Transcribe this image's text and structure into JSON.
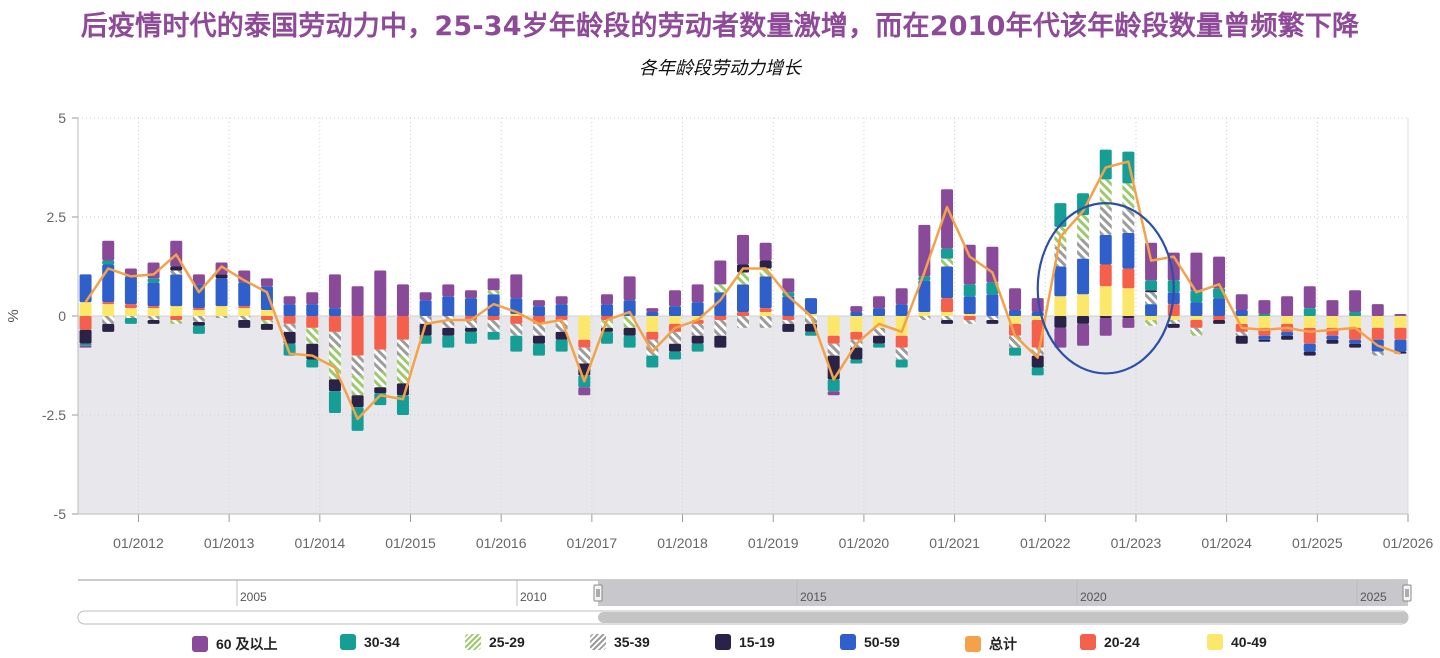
{
  "title": "后疫情时代的泰国劳动力中，25-34岁年龄段的劳动者数量激增，而在2010年代该年龄段数量曾频繁下降",
  "subtitle": "各年龄段劳动力增长",
  "colors": {
    "a60": "#8a4a9a",
    "a3034": "#159e96",
    "a2529": "#9cc96b",
    "a3539": "#9c9c9c",
    "a1519": "#2b2347",
    "a5059": "#2e5fcb",
    "total": "#f4a24a",
    "a2024": "#f4604c",
    "a4049": "#fbe86a",
    "highlight": "#2e4fa8"
  },
  "navigator": {
    "labels": [
      "2005",
      "2010",
      "2015",
      "2020",
      "2025"
    ]
  },
  "legend": [
    {
      "key": "a60",
      "label": "60 及以上",
      "swatch": "solid"
    },
    {
      "key": "a3034",
      "label": "30-34",
      "swatch": "solid"
    },
    {
      "key": "a2529",
      "label": "25-29",
      "swatch": "hatch"
    },
    {
      "key": "a3539",
      "label": "35-39",
      "swatch": "hatch"
    },
    {
      "key": "a1519",
      "label": "15-19",
      "swatch": "solid"
    },
    {
      "key": "a5059",
      "label": "50-59",
      "swatch": "solid"
    },
    {
      "key": "total",
      "label": "总计",
      "swatch": "solid"
    },
    {
      "key": "a2024",
      "label": "20-24",
      "swatch": "solid"
    },
    {
      "key": "a4049",
      "label": "40-49",
      "swatch": "solid"
    }
  ],
  "chart_data": {
    "type": "bar",
    "stacked": true,
    "title": "后疫情时代的泰国劳动力中，25-34岁年龄段的劳动者数量激增，而在2010年代该年龄段数量曾频繁下降",
    "subtitle": "各年龄段劳动力增长",
    "ylabel": "%",
    "ylim": [
      -5,
      5
    ],
    "yticks": [
      5,
      2.5,
      0,
      -2.5,
      -5
    ],
    "ytick_labels": [
      "5",
      "2.5",
      "0",
      "-2.5",
      "-5"
    ],
    "xlim": [
      "2011-05",
      "2026-01"
    ],
    "xticks": [
      "01/2012",
      "01/2013",
      "01/2014",
      "01/2015",
      "01/2016",
      "01/2017",
      "01/2018",
      "01/2019",
      "01/2020",
      "01/2021",
      "01/2022",
      "01/2023",
      "01/2024",
      "01/2025",
      "01/2026"
    ],
    "grid": true,
    "legend_position": "bottom",
    "series_order": [
      "a4049",
      "a2024",
      "a5059",
      "a3539",
      "a2529",
      "a1519",
      "a3034",
      "a60"
    ],
    "series_names": {
      "a60": "60 及以上",
      "a3034": "30-34",
      "a2529": "25-29",
      "a3539": "35-39",
      "a1519": "15-19",
      "a5059": "50-59",
      "total": "总计",
      "a2024": "20-24",
      "a4049": "40-49"
    },
    "periods": [
      {
        "x": "2011-06",
        "a4049": 0.35,
        "a2024": -0.35,
        "a5059": 0.7,
        "a1519": -0.35,
        "a60": -0.05,
        "a3034": -0.05,
        "total": 0.35
      },
      {
        "x": "2011-09",
        "a4049": 0.3,
        "a2024": 0.05,
        "a5059": 0.95,
        "a3034": 0.1,
        "a60": 0.5,
        "a1519": -0.2,
        "a3539": -0.2,
        "total": 1.2
      },
      {
        "x": "2011-12",
        "a4049": 0.2,
        "a2024": 0.1,
        "a5059": 0.7,
        "a60": 0.2,
        "a3034": -0.15,
        "a3539": -0.05,
        "total": 1.0
      },
      {
        "x": "2012-03",
        "a4049": 0.2,
        "a2024": 0.05,
        "a5059": 0.6,
        "a60": 0.4,
        "a3034": 0.1,
        "a1519": -0.1,
        "a3539": -0.1,
        "total": 1.05
      },
      {
        "x": "2012-06",
        "a4049": 0.25,
        "a5059": 0.8,
        "a1519": 0.1,
        "a3539": 0.1,
        "a60": 0.65,
        "a2024": -0.1,
        "a2529": -0.1,
        "total": 1.55
      },
      {
        "x": "2012-09",
        "a4049": 0.15,
        "a5059": 0.6,
        "a2024": 0.05,
        "a60": 0.25,
        "a3034": -0.2,
        "a3539": -0.15,
        "a1519": -0.1,
        "total": 0.6
      },
      {
        "x": "2012-12",
        "a4049": 0.25,
        "a5059": 0.7,
        "a1519": 0.1,
        "a60": 0.3,
        "a3539": -0.05,
        "total": 1.25
      },
      {
        "x": "2013-03",
        "a4049": 0.2,
        "a2024": 0.05,
        "a5059": 0.6,
        "a60": 0.3,
        "a1519": -0.2,
        "a3539": -0.1,
        "total": 0.9
      },
      {
        "x": "2013-06",
        "a4049": 0.15,
        "a5059": 0.6,
        "a60": 0.2,
        "a2024": -0.1,
        "a1519": -0.15,
        "a2529": -0.1,
        "total": 0.6
      },
      {
        "x": "2013-09",
        "a5059": 0.3,
        "a60": 0.2,
        "a2024": -0.2,
        "a1519": -0.3,
        "a3539": -0.2,
        "a3034": -0.3,
        "total": -0.95
      },
      {
        "x": "2013-12",
        "a5059": 0.3,
        "a60": 0.3,
        "a2024": -0.3,
        "a1519": -0.4,
        "a2529": -0.4,
        "a3034": -0.2,
        "total": -1.0
      },
      {
        "x": "2014-03",
        "a5059": 0.2,
        "a60": 0.85,
        "a2024": -0.4,
        "a1519": -0.3,
        "a2529": -0.8,
        "a3539": -0.4,
        "a3034": -0.55,
        "total": -1.3
      },
      {
        "x": "2014-06",
        "a60": 0.75,
        "a2024": -1.0,
        "a1519": -0.3,
        "a3539": -0.5,
        "a2529": -0.5,
        "a3034": -0.6,
        "total": -2.6
      },
      {
        "x": "2014-09",
        "a60": 1.15,
        "a2024": -0.85,
        "a1519": -0.15,
        "a3539": -0.55,
        "a2529": -0.4,
        "a3034": -0.3,
        "total": -2.0
      },
      {
        "x": "2014-12",
        "a60": 0.8,
        "a2024": -0.6,
        "a1519": -0.3,
        "a3539": -0.4,
        "a2529": -0.7,
        "a3034": -0.5,
        "total": -2.1
      },
      {
        "x": "2015-03",
        "a5059": 0.4,
        "a60": 0.2,
        "a1519": -0.3,
        "a3539": -0.2,
        "a3034": -0.2,
        "total": -0.2
      },
      {
        "x": "2015-06",
        "a5059": 0.5,
        "a60": 0.3,
        "a1519": -0.2,
        "a3539": -0.3,
        "a3034": -0.3,
        "total": -0.1
      },
      {
        "x": "2015-09",
        "a5059": 0.45,
        "a60": 0.2,
        "a2024": -0.1,
        "a1519": -0.1,
        "a3539": -0.2,
        "a3034": -0.3,
        "total": -0.1
      },
      {
        "x": "2015-12",
        "a5059": 0.55,
        "a2529": 0.1,
        "a60": 0.3,
        "a2024": -0.1,
        "a3539": -0.3,
        "a3034": -0.2,
        "total": 0.3
      },
      {
        "x": "2016-03",
        "a5059": 0.4,
        "a4049": 0.05,
        "a60": 0.6,
        "a2024": -0.2,
        "a3539": -0.3,
        "a3034": -0.4,
        "total": 0.1
      },
      {
        "x": "2016-06",
        "a5059": 0.25,
        "a60": 0.15,
        "a2024": -0.2,
        "a1519": -0.2,
        "a3539": -0.3,
        "a3034": -0.3,
        "total": -0.2
      },
      {
        "x": "2016-09",
        "a5059": 0.3,
        "a60": 0.2,
        "a2024": -0.1,
        "a1519": -0.2,
        "a3539": -0.3,
        "a3034": -0.3,
        "total": -0.1
      },
      {
        "x": "2016-12",
        "a4049": -0.6,
        "a2024": -0.2,
        "a1519": -0.3,
        "a3539": -0.4,
        "a3034": -0.3,
        "a60": -0.2,
        "total": -1.65
      },
      {
        "x": "2017-03",
        "a5059": 0.3,
        "a60": 0.25,
        "a2024": -0.1,
        "a1519": -0.1,
        "a2529": -0.2,
        "a3034": -0.3,
        "total": -0.1
      },
      {
        "x": "2017-06",
        "a5059": 0.4,
        "a60": 0.6,
        "a1519": -0.2,
        "a2529": -0.3,
        "a3034": -0.3,
        "total": 0.1
      },
      {
        "x": "2017-09",
        "a5059": 0.1,
        "a60": 0.1,
        "a4049": -0.4,
        "a2024": -0.2,
        "a3539": -0.4,
        "a3034": -0.3,
        "total": -0.9
      },
      {
        "x": "2017-12",
        "a5059": 0.25,
        "a60": 0.4,
        "a4049": -0.2,
        "a2024": -0.2,
        "a1519": -0.2,
        "a3539": -0.3,
        "a3034": -0.2,
        "total": -0.3
      },
      {
        "x": "2018-03",
        "a5059": 0.35,
        "a60": 0.45,
        "a4049": -0.1,
        "a2024": -0.1,
        "a1519": -0.2,
        "a3539": -0.3,
        "a3034": -0.2,
        "total": -0.1
      },
      {
        "x": "2018-06",
        "a5059": 0.6,
        "a2529": 0.2,
        "a60": 0.6,
        "a2024": -0.1,
        "a1519": -0.3,
        "a3539": -0.4,
        "total": 0.4
      },
      {
        "x": "2018-09",
        "a5059": 0.7,
        "a1519": 0.2,
        "a2529": 0.3,
        "a2024": 0.1,
        "a60": 0.75,
        "a3539": -0.3,
        "total": 1.2
      },
      {
        "x": "2018-12",
        "a4049": 0.1,
        "a2024": 0.1,
        "a5059": 0.8,
        "a1519": 0.2,
        "a2529": 0.2,
        "a60": 0.45,
        "a3539": -0.3,
        "total": 1.2
      },
      {
        "x": "2019-03",
        "a5059": 0.5,
        "a3034": 0.1,
        "a60": 0.35,
        "a1519": -0.2,
        "a3539": -0.1,
        "a2024": -0.1,
        "total": 0.5
      },
      {
        "x": "2019-06",
        "a5059": 0.4,
        "a4049": 0.05,
        "a1519": -0.2,
        "a3539": -0.2,
        "a3034": -0.1,
        "total": 0.0
      },
      {
        "x": "2019-09",
        "a4049": -0.5,
        "a1519": -0.6,
        "a2024": -0.2,
        "a3539": -0.3,
        "a3034": -0.3,
        "a60": -0.1,
        "total": -1.6
      },
      {
        "x": "2019-12",
        "a5059": 0.1,
        "a60": 0.15,
        "a4049": -0.4,
        "a2024": -0.2,
        "a1519": -0.3,
        "a3539": -0.2,
        "a3034": -0.1,
        "total": -0.7
      },
      {
        "x": "2020-03",
        "a5059": 0.2,
        "a60": 0.3,
        "a4049": -0.3,
        "a1519": -0.2,
        "a3539": -0.2,
        "a3034": -0.1,
        "total": -0.2
      },
      {
        "x": "2020-06",
        "a5059": 0.3,
        "a60": 0.4,
        "a4049": -0.5,
        "a2024": -0.3,
        "a3539": -0.3,
        "a3034": -0.2,
        "total": -0.4
      },
      {
        "x": "2020-09",
        "a5059": 0.8,
        "a3034": 0.1,
        "a60": 1.3,
        "a4049": 0.1,
        "a3539": -0.1,
        "total": 1.1
      },
      {
        "x": "2020-12",
        "a4049": 0.1,
        "a2024": 0.35,
        "a5059": 0.8,
        "a2529": 0.2,
        "a3034": 0.25,
        "a60": 1.5,
        "a3539": -0.1,
        "a1519": -0.1,
        "total": 2.75
      },
      {
        "x": "2021-03",
        "a4049": 0.05,
        "a5059": 0.45,
        "a3034": 0.3,
        "a60": 1.0,
        "a2024": -0.1,
        "a3539": -0.1,
        "total": 1.5
      },
      {
        "x": "2021-06",
        "a5059": 0.55,
        "a3034": 0.3,
        "a60": 0.9,
        "a1519": -0.1,
        "a3539": -0.1,
        "total": 1.1
      },
      {
        "x": "2021-09",
        "a5059": 0.15,
        "a60": 0.55,
        "a2024": -0.3,
        "a4049": -0.2,
        "a3539": -0.3,
        "a3034": -0.2,
        "total": -0.5
      },
      {
        "x": "2021-12",
        "a5059": 0.1,
        "a60": 0.35,
        "a2024": -0.7,
        "a4049": -0.1,
        "a1519": -0.3,
        "a3539": -0.2,
        "a3034": -0.2,
        "total": -1.05
      },
      {
        "x": "2022-03",
        "a4049": 0.5,
        "a5059": 0.75,
        "a3539": 0.5,
        "a2529": 0.5,
        "a3034": 0.6,
        "a1519": -0.3,
        "a60": -0.5,
        "total": 2.0
      },
      {
        "x": "2022-06",
        "a4049": 0.55,
        "a5059": 0.9,
        "a3539": 0.5,
        "a2529": 0.6,
        "a3034": 0.55,
        "a1519": -0.2,
        "a60": -0.55,
        "total": 2.65
      },
      {
        "x": "2022-09",
        "a4049": 0.75,
        "a2024": 0.55,
        "a5059": 0.75,
        "a3539": 0.7,
        "a2529": 0.7,
        "a3034": 0.75,
        "a1519": -0.05,
        "a60": -0.45,
        "total": 3.75
      },
      {
        "x": "2022-12",
        "a4049": 0.7,
        "a2024": 0.5,
        "a5059": 0.9,
        "a3539": 0.6,
        "a2529": 0.65,
        "a3034": 0.8,
        "a1519": -0.05,
        "a60": -0.25,
        "total": 3.9
      },
      {
        "x": "2023-03",
        "a5059": 0.3,
        "a3539": 0.3,
        "a1519": 0.05,
        "a3034": 0.25,
        "a60": 0.95,
        "a4049": -0.1,
        "a2529": -0.15,
        "total": 1.4
      },
      {
        "x": "2023-06",
        "a2024": 0.3,
        "a5059": 0.3,
        "a3034": 0.3,
        "a60": 0.7,
        "a4049": -0.1,
        "a1519": -0.1,
        "a3539": -0.1,
        "total": 1.5
      },
      {
        "x": "2023-09",
        "a5059": 0.35,
        "a3034": 0.3,
        "a60": 0.95,
        "a2024": -0.2,
        "a4049": -0.1,
        "a3539": -0.1,
        "a2529": -0.1,
        "total": 0.6
      },
      {
        "x": "2023-12",
        "a5059": 0.45,
        "a3034": 0.25,
        "a60": 0.8,
        "a2024": -0.1,
        "a1519": -0.1,
        "total": 0.8
      },
      {
        "x": "2024-03",
        "a5059": 0.15,
        "a60": 0.4,
        "a4049": -0.2,
        "a2024": -0.2,
        "a1519": -0.2,
        "a3539": -0.1,
        "total": -0.3
      },
      {
        "x": "2024-06",
        "a3034": 0.05,
        "a60": 0.35,
        "a4049": -0.3,
        "a2024": -0.2,
        "a5059": -0.1,
        "a1519": -0.05,
        "total": -0.35
      },
      {
        "x": "2024-09",
        "a60": 0.5,
        "a4049": -0.2,
        "a2024": -0.2,
        "a5059": -0.1,
        "a1519": -0.1,
        "total": -0.3
      },
      {
        "x": "2024-12",
        "a3034": 0.2,
        "a60": 0.55,
        "a4049": -0.3,
        "a2024": -0.4,
        "a5059": -0.2,
        "a1519": -0.1,
        "total": -0.4
      },
      {
        "x": "2025-03",
        "a60": 0.4,
        "a4049": -0.3,
        "a2024": -0.2,
        "a5059": -0.1,
        "a1519": -0.1,
        "total": -0.35
      },
      {
        "x": "2025-06",
        "a3034": 0.1,
        "a60": 0.55,
        "a4049": -0.3,
        "a2024": -0.3,
        "a5059": -0.1,
        "a1519": -0.1,
        "total": -0.3
      },
      {
        "x": "2025-09",
        "a60": 0.3,
        "a4049": -0.3,
        "a2024": -0.3,
        "a5059": -0.3,
        "a3539": -0.1,
        "total": -0.75
      },
      {
        "x": "2025-12",
        "a60": 0.05,
        "a4049": -0.3,
        "a2024": -0.3,
        "a5059": -0.3,
        "a1519": -0.05,
        "total": -0.95
      }
    ],
    "annotations": [
      {
        "type": "circle",
        "x_from": "2021-12",
        "x_to": "2023-06",
        "y_from": -1.45,
        "y_to": 2.85
      }
    ]
  }
}
